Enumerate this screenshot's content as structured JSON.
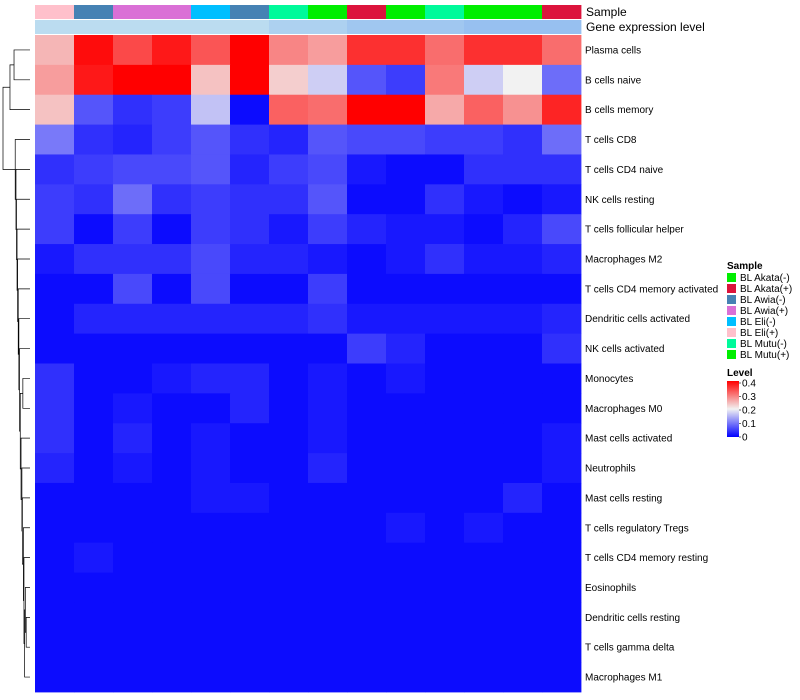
{
  "chart_data": {
    "type": "heatmap",
    "title": "",
    "annotation_labels": [
      "Sample",
      "Gene expression level"
    ],
    "columns": [
      "BL Eli(+)",
      "BL Awia(-)",
      "BL Awia(+)",
      "BL Awia(+)",
      "BL Eli(-)",
      "BL Awia(-)",
      "BL Mutu(-)",
      "BL Mutu(+)",
      "BL Akata(+)",
      "BL Mutu(+)",
      "BL Mutu(-)",
      "BL Mutu(+)",
      "BL Mutu(+)",
      "BL Akata(+)"
    ],
    "gene_expression_level": [
      0.15,
      0.15,
      0.15,
      0.15,
      0.15,
      0.15,
      0.3,
      0.3,
      0.45,
      0.45,
      0.45,
      0.55,
      0.55,
      0.55
    ],
    "rows": [
      "Plasma cells",
      "B cells naive",
      "B cells memory",
      "T cells CD8",
      "T cells CD4 naive",
      "NK cells resting",
      "T cells follicular helper",
      "Macrophages M2",
      "T cells CD4 memory activated",
      "Dendritic cells activated",
      "NK cells activated",
      "Monocytes",
      "Macrophages M0",
      "Mast cells activated",
      "Neutrophils",
      "Mast cells resting",
      "T cells regulatory  Tregs",
      "T cells CD4 memory resting",
      "Eosinophils",
      "Dendritic cells resting",
      "T cells gamma delta",
      "Macrophages M1"
    ],
    "values": [
      [
        0.25,
        0.39,
        0.34,
        0.38,
        0.33,
        0.4,
        0.29,
        0.27,
        0.36,
        0.36,
        0.31,
        0.36,
        0.36,
        0.31
      ],
      [
        0.27,
        0.38,
        0.42,
        0.42,
        0.24,
        0.41,
        0.23,
        0.17,
        0.07,
        0.05,
        0.3,
        0.17,
        0.2,
        0.09
      ],
      [
        0.24,
        0.07,
        0.04,
        0.05,
        0.16,
        0.01,
        0.32,
        0.31,
        0.41,
        0.42,
        0.26,
        0.32,
        0.28,
        0.37
      ],
      [
        0.1,
        0.04,
        0.03,
        0.05,
        0.07,
        0.04,
        0.03,
        0.07,
        0.06,
        0.06,
        0.05,
        0.05,
        0.04,
        0.09
      ],
      [
        0.04,
        0.05,
        0.06,
        0.06,
        0.07,
        0.03,
        0.05,
        0.06,
        0.02,
        0.01,
        0.01,
        0.04,
        0.04,
        0.04
      ],
      [
        0.05,
        0.04,
        0.09,
        0.04,
        0.05,
        0.04,
        0.04,
        0.07,
        0.01,
        0.01,
        0.04,
        0.02,
        0.01,
        0.02
      ],
      [
        0.05,
        0.01,
        0.05,
        0.01,
        0.05,
        0.04,
        0.02,
        0.05,
        0.03,
        0.02,
        0.02,
        0.01,
        0.03,
        0.06
      ],
      [
        0.02,
        0.04,
        0.04,
        0.04,
        0.06,
        0.03,
        0.03,
        0.02,
        0.01,
        0.02,
        0.04,
        0.02,
        0.02,
        0.03
      ],
      [
        0.01,
        0.01,
        0.06,
        0.01,
        0.06,
        0.01,
        0.01,
        0.05,
        0.01,
        0.01,
        0.01,
        0.01,
        0.01,
        0.01
      ],
      [
        0.01,
        0.03,
        0.03,
        0.03,
        0.03,
        0.03,
        0.03,
        0.04,
        0.02,
        0.02,
        0.02,
        0.02,
        0.02,
        0.03
      ],
      [
        0.01,
        0.01,
        0.01,
        0.01,
        0.01,
        0.01,
        0.01,
        0.01,
        0.05,
        0.03,
        0.01,
        0.01,
        0.01,
        0.04
      ],
      [
        0.04,
        0.01,
        0.01,
        0.02,
        0.03,
        0.03,
        0.01,
        0.02,
        0.01,
        0.02,
        0.01,
        0.01,
        0.01,
        0.01
      ],
      [
        0.04,
        0.01,
        0.02,
        0.01,
        0.01,
        0.03,
        0.01,
        0.02,
        0.01,
        0.01,
        0.01,
        0.01,
        0.01,
        0.01
      ],
      [
        0.04,
        0.01,
        0.03,
        0.01,
        0.02,
        0.01,
        0.01,
        0.02,
        0.01,
        0.01,
        0.01,
        0.01,
        0.01,
        0.02
      ],
      [
        0.03,
        0.01,
        0.02,
        0.01,
        0.02,
        0.01,
        0.01,
        0.03,
        0.01,
        0.01,
        0.01,
        0.01,
        0.01,
        0.02
      ],
      [
        0.01,
        0.01,
        0.01,
        0.01,
        0.02,
        0.02,
        0.01,
        0.01,
        0.01,
        0.01,
        0.01,
        0.01,
        0.03,
        0.01
      ],
      [
        0.01,
        0.01,
        0.01,
        0.01,
        0.01,
        0.01,
        0.01,
        0.01,
        0.01,
        0.02,
        0.01,
        0.02,
        0.01,
        0.01
      ],
      [
        0.01,
        0.02,
        0.01,
        0.01,
        0.01,
        0.01,
        0.01,
        0.01,
        0.01,
        0.01,
        0.01,
        0.01,
        0.01,
        0.01
      ],
      [
        0.01,
        0.01,
        0.01,
        0.01,
        0.01,
        0.01,
        0.01,
        0.01,
        0.01,
        0.01,
        0.01,
        0.01,
        0.01,
        0.01
      ],
      [
        0.01,
        0.01,
        0.01,
        0.01,
        0.01,
        0.01,
        0.01,
        0.01,
        0.01,
        0.01,
        0.01,
        0.01,
        0.01,
        0.01
      ],
      [
        0.01,
        0.01,
        0.01,
        0.01,
        0.01,
        0.01,
        0.01,
        0.01,
        0.01,
        0.01,
        0.01,
        0.01,
        0.01,
        0.01
      ],
      [
        0.01,
        0.01,
        0.01,
        0.01,
        0.01,
        0.01,
        0.01,
        0.01,
        0.01,
        0.01,
        0.01,
        0.01,
        0.01,
        0.01
      ]
    ],
    "color_scale": {
      "stops": [
        {
          "value": 0,
          "color": "#0000ff"
        },
        {
          "value": 0.2,
          "color": "#f2f2f2"
        },
        {
          "value": 0.4,
          "color": "#ff0000"
        }
      ]
    },
    "legend_sample": {
      "title": "Sample",
      "entries": [
        {
          "label": "BL Akata(-)",
          "color": "#00ee00"
        },
        {
          "label": "BL Akata(+)",
          "color": "#dc143c"
        },
        {
          "label": "BL Awia(-)",
          "color": "#4682b4"
        },
        {
          "label": "BL Awia(+)",
          "color": "#da70d6"
        },
        {
          "label": "BL Eli(-)",
          "color": "#00bfff"
        },
        {
          "label": "BL Eli(+)",
          "color": "#ffc0cb"
        },
        {
          "label": "BL Mutu(-)",
          "color": "#00fa9a"
        },
        {
          "label": "BL Mutu(+)",
          "color": "#00ee00"
        }
      ]
    },
    "legend_level": {
      "title": "Level",
      "ticks": [
        0.4,
        0.3,
        0.2,
        0.1,
        0
      ],
      "tick_labels": [
        "0.4",
        "0.3",
        "0.2",
        "0.1",
        "0"
      ]
    },
    "dendrogram": {
      "merges": [
        {
          "a": "r0",
          "b": "r1",
          "h": 0.35
        },
        {
          "a": "m0",
          "b": "r2",
          "h": 0.55
        },
        {
          "a": "r19",
          "b": "r20",
          "h": 0.02
        },
        {
          "a": "r18",
          "b": "m2",
          "h": 0.03
        },
        {
          "a": "r21",
          "b": "m3",
          "h": 0.04
        },
        {
          "a": "r17",
          "b": "m4",
          "h": 0.05
        },
        {
          "a": "r16",
          "b": "m5",
          "h": 0.06
        },
        {
          "a": "r15",
          "b": "m6",
          "h": 0.08
        },
        {
          "a": "r14",
          "b": "m7",
          "h": 0.09
        },
        {
          "a": "r13",
          "b": "m8",
          "h": 0.11
        },
        {
          "a": "r11",
          "b": "r12",
          "h": 0.07
        },
        {
          "a": "m10",
          "b": "m9",
          "h": 0.13
        },
        {
          "a": "r10",
          "b": "m11",
          "h": 0.15
        },
        {
          "a": "r9",
          "b": "m12",
          "h": 0.17
        },
        {
          "a": "r8",
          "b": "m13",
          "h": 0.19
        },
        {
          "a": "r7",
          "b": "m14",
          "h": 0.21
        },
        {
          "a": "r6",
          "b": "m15",
          "h": 0.23
        },
        {
          "a": "r5",
          "b": "m16",
          "h": 0.25
        },
        {
          "a": "r4",
          "b": "m17",
          "h": 0.27
        },
        {
          "a": "r3",
          "b": "m18",
          "h": 0.3
        },
        {
          "a": "m1",
          "b": "m19",
          "h": 1.0
        }
      ]
    }
  }
}
